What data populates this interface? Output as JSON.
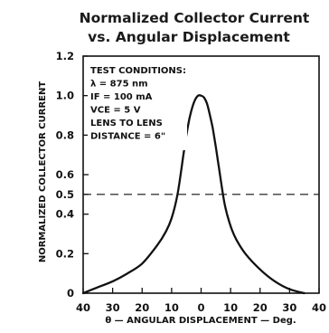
{
  "chart_data": {
    "type": "line",
    "title": "Normalized Collector Current",
    "subtitle": "vs. Angular Displacement",
    "xlabel": "θ — ANGULAR DISPLACEMENT — Deg.",
    "ylabel": "NORMALIZED COLLECTOR CURRENT",
    "xlim": [
      -40,
      40
    ],
    "ylim": [
      0,
      1.2
    ],
    "x_tick_labels": [
      "40",
      "30",
      "20",
      "10",
      "0",
      "10",
      "20",
      "30",
      "40"
    ],
    "x_tick_values": [
      -40,
      -30,
      -20,
      -10,
      0,
      10,
      20,
      30,
      40
    ],
    "y_tick_labels": [
      "0",
      "0.2",
      "0.4",
      "0.5",
      "0.6",
      "0.8",
      "1.0",
      "1.2"
    ],
    "y_tick_values": [
      0,
      0.2,
      0.4,
      0.5,
      0.6,
      0.8,
      1.0,
      1.2
    ],
    "reference_line": {
      "y": 0.5,
      "style": "dashed"
    },
    "test_conditions": [
      "TEST CONDITIONS:",
      "λ = 875 nm",
      "IF = 100 mA",
      "VCE = 5 V",
      "LENS TO LENS",
      "DISTANCE = 6\""
    ],
    "series": [
      {
        "x": [
          -40,
          -35,
          -30,
          -25,
          -20,
          -15,
          -12,
          -10,
          -8,
          -6,
          -5,
          -4,
          -3,
          -2,
          -1,
          0,
          1,
          2,
          3,
          4,
          5,
          6,
          8,
          10,
          12,
          15,
          20,
          25,
          30,
          35
        ],
        "y": [
          0.0,
          0.03,
          0.06,
          0.1,
          0.15,
          0.24,
          0.31,
          0.38,
          0.5,
          0.7,
          0.8,
          0.88,
          0.94,
          0.98,
          1.0,
          1.0,
          0.99,
          0.96,
          0.9,
          0.83,
          0.74,
          0.64,
          0.45,
          0.34,
          0.27,
          0.2,
          0.12,
          0.06,
          0.02,
          0.0
        ]
      }
    ]
  }
}
